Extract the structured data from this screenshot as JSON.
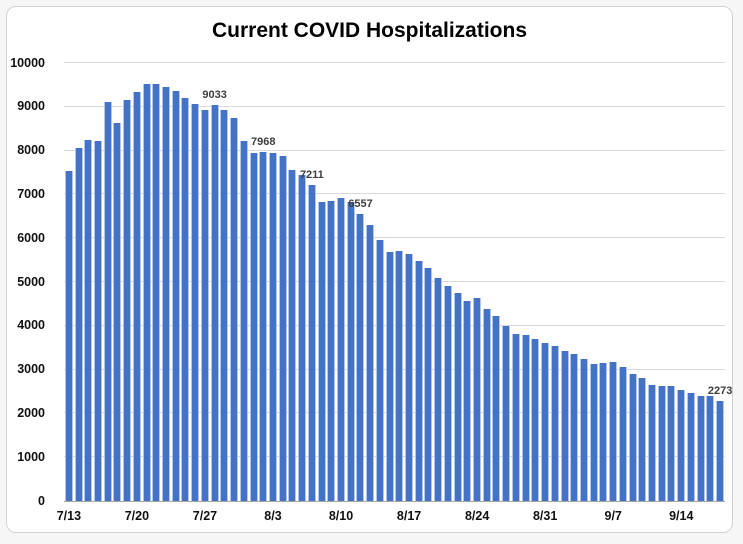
{
  "window": {
    "background": "#f6f6f7",
    "frame_border": "#d2d2d6",
    "frame_background": "#ffffff"
  },
  "chart_data": {
    "type": "bar",
    "title": "Current COVID Hospitalizations",
    "xlabel": "",
    "ylabel": "",
    "ylim": [
      0,
      10000
    ],
    "grid": true,
    "legend": false,
    "bar_color": "#4472C4",
    "bar_edge_color": "#b3c7ea",
    "gridline_color": "#d9d9d9",
    "axis_line_color": "#a6a6a6",
    "categories": [
      "7/13",
      "7/14",
      "7/15",
      "7/16",
      "7/17",
      "7/18",
      "7/19",
      "7/20",
      "7/21",
      "7/22",
      "7/23",
      "7/24",
      "7/25",
      "7/26",
      "7/27",
      "7/28",
      "7/29",
      "7/30",
      "7/31",
      "8/1",
      "8/2",
      "8/3",
      "8/4",
      "8/5",
      "8/6",
      "8/7",
      "8/8",
      "8/9",
      "8/10",
      "8/11",
      "8/12",
      "8/13",
      "8/14",
      "8/15",
      "8/16",
      "8/17",
      "8/18",
      "8/19",
      "8/20",
      "8/21",
      "8/22",
      "8/23",
      "8/24",
      "8/25",
      "8/26",
      "8/27",
      "8/28",
      "8/29",
      "8/30",
      "8/31",
      "9/1",
      "9/2",
      "9/3",
      "9/4",
      "9/5",
      "9/6",
      "9/7",
      "9/8",
      "9/9",
      "9/10",
      "9/11",
      "9/12",
      "9/13",
      "9/14",
      "9/15",
      "9/16",
      "9/17",
      "9/18"
    ],
    "values": [
      7530,
      8060,
      8240,
      8210,
      9120,
      8620,
      9160,
      9330,
      9520,
      9510,
      9460,
      9370,
      9190,
      9065,
      8930,
      9033,
      8930,
      8745,
      8230,
      7955,
      7968,
      7950,
      7880,
      7565,
      7445,
      7211,
      6820,
      6850,
      6920,
      6830,
      6557,
      6300,
      5950,
      5680,
      5700,
      5645,
      5475,
      5325,
      5090,
      4900,
      4745,
      4560,
      4630,
      4385,
      4230,
      3985,
      3820,
      3795,
      3705,
      3615,
      3545,
      3430,
      3350,
      3250,
      3135,
      3155,
      3165,
      3060,
      2905,
      2805,
      2660,
      2620,
      2625,
      2540,
      2465,
      2390,
      2395,
      2273
    ],
    "x_tick_indices": [
      0,
      7,
      14,
      21,
      28,
      35,
      42,
      49,
      56,
      63
    ],
    "x_tick_labels": [
      "7/13",
      "7/20",
      "7/27",
      "8/3",
      "8/10",
      "8/17",
      "8/24",
      "8/31",
      "9/7",
      "9/14"
    ],
    "y_tick_values": [
      0,
      1000,
      2000,
      3000,
      4000,
      5000,
      6000,
      7000,
      8000,
      9000,
      10000
    ],
    "y_tick_labels": [
      "0",
      "1000",
      "2000",
      "3000",
      "4000",
      "5000",
      "6000",
      "7000",
      "8000",
      "9000",
      "10000"
    ],
    "data_labels": [
      {
        "index": 15,
        "text": "9033"
      },
      {
        "index": 20,
        "text": "7968"
      },
      {
        "index": 25,
        "text": "7211"
      },
      {
        "index": 30,
        "text": "6557"
      },
      {
        "index": 67,
        "text": "2273"
      }
    ]
  }
}
